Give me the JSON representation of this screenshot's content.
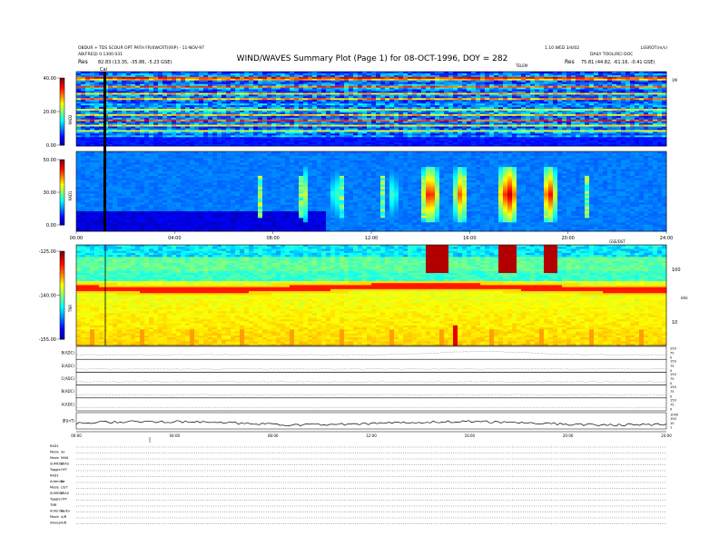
{
  "header": {
    "left_line1": "OBDUR + TDS SCOUR OPT PATH FR(6WCRT)(RIP) - 11-NOV-97",
    "left_line2": "AB(FREQ) 0.1300 031",
    "left_res_label": "Res",
    "left_res_value": "82.83 (13.35, -35.86, -5.23 GSE)",
    "title": "WIND/WAVES Summary Plot (Page 1) for 08-OCT-1996, DOY = 282",
    "right_line1": "1.10 WED 3/4/02",
    "right_line2": "DAILY TOOL(RE) DOC",
    "right_corner": "LSSROT(m/s)",
    "right_res_label": "Res",
    "right_res_value": "75.81 (44.82, -61.16, -0.41 GSE)",
    "telemetry_label": "TELEM",
    "cal_label": "Cal"
  },
  "colors": {
    "colormap": [
      "#00008f",
      "#0000ff",
      "#007fff",
      "#00ffff",
      "#7fff7f",
      "#ffff00",
      "#ff7f00",
      "#ff0000",
      "#7f0000"
    ],
    "background_band": "#0050ff",
    "marker_line": "#000000"
  },
  "chart_data": [
    {
      "type": "heatmap",
      "name": "RAD2",
      "y_axis_label": "RAD2",
      "y_ticks": [
        "40.00",
        "20.00",
        "0.00"
      ],
      "ylim": [
        0,
        40
      ],
      "colorbar": true,
      "x_ticks": [],
      "right_tick": "1M"
    },
    {
      "type": "heatmap",
      "name": "RAD1",
      "y_axis_label": "RAD1",
      "y_ticks": [
        "50.00",
        "30.00",
        "0.00"
      ],
      "ylim": [
        0,
        50
      ],
      "colorbar": true,
      "x_ticks": [
        "00:00",
        "04:00",
        "08:00",
        "12:00",
        "16:00",
        "20:00",
        "24:00"
      ],
      "xlim": [
        0,
        24
      ],
      "bursts": [
        {
          "start": 14.0,
          "end": 14.6,
          "intensity": 0.95
        },
        {
          "start": 15.3,
          "end": 15.8,
          "intensity": 0.85
        },
        {
          "start": 17.1,
          "end": 17.9,
          "intensity": 0.98
        },
        {
          "start": 18.9,
          "end": 19.4,
          "intensity": 0.95
        },
        {
          "start": 9.1,
          "end": 9.4,
          "intensity": 0.6
        },
        {
          "start": 10.3,
          "end": 10.6,
          "intensity": 0.55
        },
        {
          "start": 12.6,
          "end": 13.0,
          "intensity": 0.5
        }
      ]
    },
    {
      "type": "heatmap",
      "name": "TNR",
      "y_axis_label": "TNR",
      "y_ticks": [
        "-125.00",
        "-140.00",
        "-155.00"
      ],
      "ylim": [
        -155,
        -125
      ],
      "colorbar": true,
      "right_ticks": [
        "100",
        "10"
      ],
      "right_unit": "kHz",
      "annotation": "GSE/DST",
      "x_ticks": [],
      "plasma_line_level": 0.42
    },
    {
      "type": "line",
      "name": "B",
      "panels": [
        {
          "label": "B(ADC)",
          "right_ticks": [
            "250",
            "75",
            "0"
          ]
        },
        {
          "label": "E(ADC)",
          "right_ticks": [
            "150",
            "75",
            "0"
          ]
        },
        {
          "label": "C(ADC)",
          "right_ticks": [
            "150",
            "75",
            "0"
          ]
        },
        {
          "label": "B(ADC)",
          "right_ticks": [
            "150",
            "75",
            "0"
          ]
        },
        {
          "label": "A(ADC)",
          "right_ticks": [
            "150",
            "75",
            "0"
          ]
        },
        {
          "label": "|B|(nT)",
          "right_ticks": [
            "1000",
            "100",
            "10",
            "1"
          ]
        }
      ],
      "x_ticks": [
        "00:00",
        "04:00",
        "08:00",
        "12:00",
        "16:00",
        "20:00",
        "24:00"
      ],
      "xlim": [
        0,
        24
      ]
    }
  ],
  "footer": {
    "rows": [
      {
        "label": "RAD1",
        "value": ""
      },
      {
        "label": "Mode",
        "value": "Sa"
      },
      {
        "label": "Mode",
        "value": "MAN"
      },
      {
        "label": "SUMDSP",
        "value": "L2AS"
      },
      {
        "label": "Toggle",
        "value": "OFF"
      },
      {
        "label": "RAD1",
        "value": ""
      },
      {
        "label": "Antenna",
        "value": "Ea"
      },
      {
        "label": "Mode",
        "value": "LIST"
      },
      {
        "label": "SUMDSP",
        "value": "L2AS"
      },
      {
        "label": "Toggle",
        "value": "OFF"
      },
      {
        "label": "TNR",
        "value": ""
      },
      {
        "label": "Antenna",
        "value": "Ea/Ey"
      },
      {
        "label": "Mode",
        "value": "A/B"
      },
      {
        "label": "Sweep",
        "value": "A/B"
      }
    ]
  }
}
